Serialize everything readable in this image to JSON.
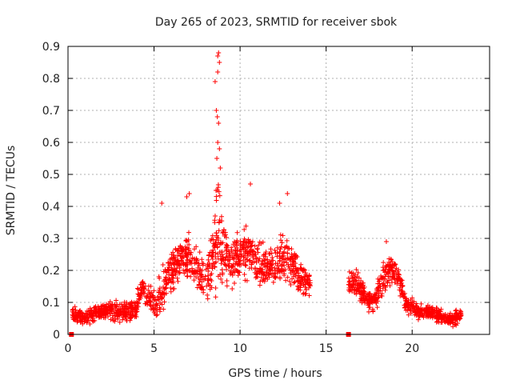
{
  "chart_data": {
    "type": "scatter",
    "title": "Day 265 of 2023, SRMTID for receiver sbok",
    "xlabel": "GPS time / hours",
    "ylabel": "SRMTID / TECUs",
    "xlim": [
      0,
      24.5
    ],
    "ylim": [
      0,
      0.9
    ],
    "xticks": [
      0,
      5,
      10,
      15,
      20
    ],
    "yticks": [
      0,
      0.1,
      0.2,
      0.3,
      0.4,
      0.5,
      0.6,
      0.7,
      0.8,
      0.9
    ],
    "xtick_labels": [
      "0",
      "5",
      "10",
      "15",
      "20"
    ],
    "ytick_labels": [
      "0",
      "0.1",
      "0.2",
      "0.3",
      "0.4",
      "0.5",
      "0.6",
      "0.7",
      "0.8",
      "0.9"
    ],
    "grid": true,
    "marker": "plus",
    "color": "#ff0000",
    "series": [
      {
        "name": "SRMTID",
        "envelope": {
          "description": "approximate median level and spread of the scatter cloud vs GPS hour",
          "x": [
            0.2,
            0.5,
            1.0,
            1.5,
            2.0,
            2.5,
            3.0,
            3.5,
            4.0,
            4.3,
            4.6,
            5.0,
            5.5,
            6.0,
            6.5,
            7.0,
            7.5,
            8.0,
            8.5,
            8.8,
            9.0,
            9.5,
            10.0,
            10.5,
            11.0,
            11.5,
            12.0,
            12.5,
            13.0,
            13.5,
            14.0,
            16.3,
            16.8,
            17.3,
            17.8,
            18.3,
            18.8,
            19.2,
            19.6,
            20.0,
            20.5,
            21.0,
            21.5,
            22.0,
            22.5,
            22.8
          ],
          "median": [
            0.06,
            0.06,
            0.05,
            0.07,
            0.07,
            0.08,
            0.07,
            0.07,
            0.09,
            0.15,
            0.12,
            0.09,
            0.14,
            0.2,
            0.22,
            0.24,
            0.2,
            0.17,
            0.25,
            0.35,
            0.27,
            0.22,
            0.25,
            0.26,
            0.22,
            0.22,
            0.2,
            0.24,
            0.22,
            0.18,
            0.16,
            0.15,
            0.16,
            0.11,
            0.1,
            0.18,
            0.2,
            0.18,
            0.1,
            0.08,
            0.07,
            0.07,
            0.06,
            0.05,
            0.05,
            0.06
          ],
          "spread": [
            0.03,
            0.03,
            0.03,
            0.04,
            0.03,
            0.04,
            0.04,
            0.04,
            0.05,
            0.05,
            0.06,
            0.06,
            0.1,
            0.1,
            0.1,
            0.1,
            0.08,
            0.1,
            0.15,
            0.3,
            0.14,
            0.1,
            0.1,
            0.1,
            0.1,
            0.09,
            0.08,
            0.1,
            0.08,
            0.08,
            0.05,
            0.05,
            0.06,
            0.05,
            0.05,
            0.07,
            0.06,
            0.05,
            0.04,
            0.04,
            0.03,
            0.03,
            0.03,
            0.03,
            0.03,
            0.03
          ]
        },
        "peaks": [
          {
            "x": 8.75,
            "y": 0.88
          },
          {
            "x": 8.7,
            "y": 0.87
          },
          {
            "x": 8.8,
            "y": 0.85
          },
          {
            "x": 8.7,
            "y": 0.82
          },
          {
            "x": 8.55,
            "y": 0.79
          },
          {
            "x": 8.62,
            "y": 0.7
          },
          {
            "x": 8.68,
            "y": 0.68
          },
          {
            "x": 8.75,
            "y": 0.66
          },
          {
            "x": 8.7,
            "y": 0.6
          },
          {
            "x": 8.8,
            "y": 0.58
          },
          {
            "x": 8.65,
            "y": 0.55
          },
          {
            "x": 8.85,
            "y": 0.52
          },
          {
            "x": 8.6,
            "y": 0.45
          },
          {
            "x": 10.6,
            "y": 0.47
          },
          {
            "x": 6.9,
            "y": 0.43
          },
          {
            "x": 7.05,
            "y": 0.44
          },
          {
            "x": 12.75,
            "y": 0.44
          },
          {
            "x": 5.45,
            "y": 0.41
          },
          {
            "x": 12.3,
            "y": 0.41
          },
          {
            "x": 18.5,
            "y": 0.29
          }
        ],
        "gap_markers": [
          {
            "x": 0.2,
            "y": 0.0
          },
          {
            "x": 16.3,
            "y": 0.0
          }
        ]
      }
    ]
  }
}
